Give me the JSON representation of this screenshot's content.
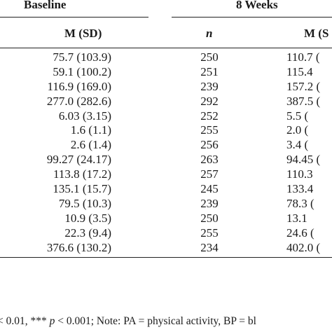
{
  "headers": {
    "baseline": "Baseline",
    "week8": "8 Weeks",
    "msd_baseline": "M (SD)",
    "n": "n",
    "msd_week8": "M (S"
  },
  "rows": [
    {
      "msd": "75.7 (103.9)",
      "n": "250",
      "m8": "110.7 ("
    },
    {
      "msd": "59.1 (100.2)",
      "n": "251",
      "m8": "115.4"
    },
    {
      "msd": "116.9 (169.0)",
      "n": "239",
      "m8": "157.2 ("
    },
    {
      "msd": "277.0 (282.6)",
      "n": "292",
      "m8": "387.5 ("
    },
    {
      "msd": "6.03 (3.15)",
      "n": "252",
      "m8": "5.5 ("
    },
    {
      "msd": "1.6 (1.1)",
      "n": "255",
      "m8": "2.0 ("
    },
    {
      "msd": "2.6 (1.4)",
      "n": "256",
      "m8": "3.4 ("
    },
    {
      "msd": "99.27 (24.17)",
      "n": "263",
      "m8": "94.45 ("
    },
    {
      "msd": "113.8 (17.2)",
      "n": "257",
      "m8": "110.3"
    },
    {
      "msd": "135.1 (15.7)",
      "n": "245",
      "m8": "133.4"
    },
    {
      "msd": "79.5 (10.3)",
      "n": "239",
      "m8": "78.3 ("
    },
    {
      "msd": "10.9 (3.5)",
      "n": "250",
      "m8": "13.1"
    },
    {
      "msd": "22.3 (9.4)",
      "n": "255",
      "m8": "24.6 ("
    },
    {
      "msd": "376.6 (130.2)",
      "n": "234",
      "m8": "402.0 ("
    }
  ],
  "footnote": {
    "part1": "< 0.01, *** ",
    "p": "p",
    "part2": " < 0.001; Note: PA = physical activity, BP = bl"
  }
}
